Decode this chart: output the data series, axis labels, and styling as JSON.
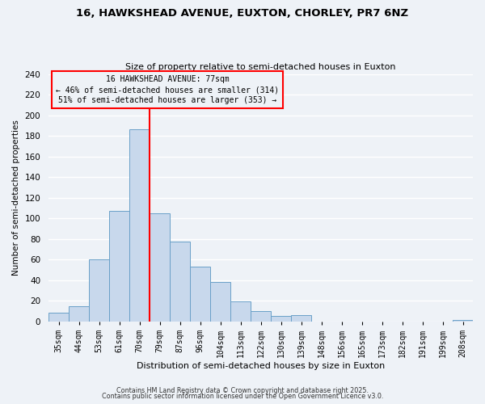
{
  "title": "16, HAWKSHEAD AVENUE, EUXTON, CHORLEY, PR7 6NZ",
  "subtitle": "Size of property relative to semi-detached houses in Euxton",
  "xlabel": "Distribution of semi-detached houses by size in Euxton",
  "ylabel": "Number of semi-detached properties",
  "bar_labels": [
    "35sqm",
    "44sqm",
    "53sqm",
    "61sqm",
    "70sqm",
    "79sqm",
    "87sqm",
    "96sqm",
    "104sqm",
    "113sqm",
    "122sqm",
    "130sqm",
    "139sqm",
    "148sqm",
    "156sqm",
    "165sqm",
    "173sqm",
    "182sqm",
    "191sqm",
    "199sqm",
    "208sqm"
  ],
  "bar_values": [
    8,
    15,
    60,
    107,
    186,
    105,
    77,
    53,
    38,
    19,
    10,
    5,
    6,
    0,
    0,
    0,
    0,
    0,
    0,
    0,
    1
  ],
  "bar_color": "#c8d8ec",
  "bar_edge_color": "#6aa0c8",
  "ylim": [
    0,
    240
  ],
  "yticks": [
    0,
    20,
    40,
    60,
    80,
    100,
    120,
    140,
    160,
    180,
    200,
    220,
    240
  ],
  "vline_color": "red",
  "annotation_title": "16 HAWKSHEAD AVENUE: 77sqm",
  "annotation_line1": "← 46% of semi-detached houses are smaller (314)",
  "annotation_line2": "51% of semi-detached houses are larger (353) →",
  "annotation_box_color": "red",
  "footer_line1": "Contains HM Land Registry data © Crown copyright and database right 2025.",
  "footer_line2": "Contains public sector information licensed under the Open Government Licence v3.0.",
  "background_color": "#eef2f7",
  "grid_color": "#ffffff"
}
